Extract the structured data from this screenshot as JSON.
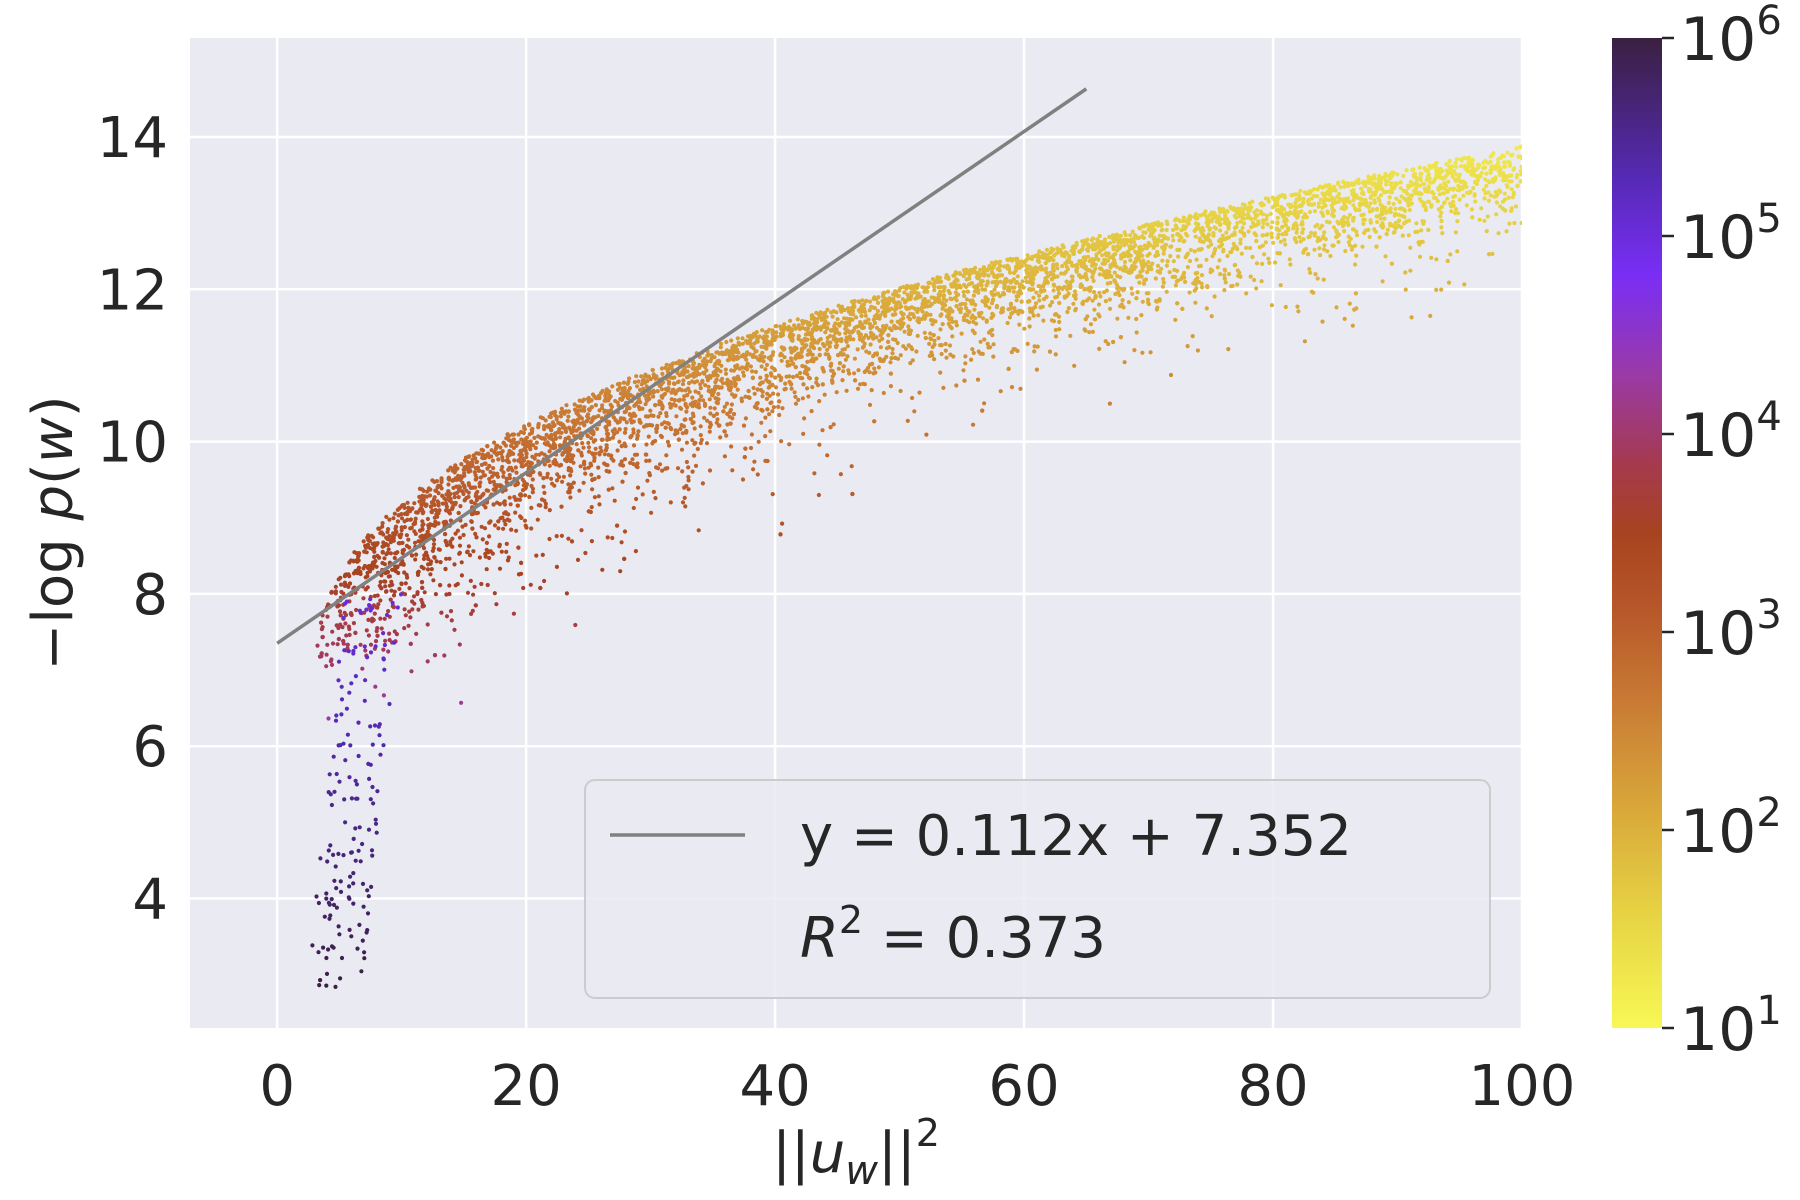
{
  "chart_data": {
    "type": "scatter",
    "title": "",
    "xlabel": "||u_w||^2",
    "ylabel": "−log p(w)",
    "xlim": [
      -7,
      100
    ],
    "ylim": [
      2.3,
      15.3
    ],
    "xticks": [
      0,
      20,
      40,
      60,
      80,
      100
    ],
    "yticks": [
      4,
      6,
      8,
      10,
      12,
      14
    ],
    "grid": true,
    "fit_line": {
      "slope": 0.112,
      "intercept": 7.352,
      "x_range": [
        0,
        65
      ],
      "color": "#808080",
      "label": "y = 0.112x + 7.352"
    },
    "r_squared_label": "R² = 0.373",
    "legend_position": "lower-right",
    "colorbar": {
      "label": "",
      "scale": "log",
      "range": [
        10,
        1000000
      ],
      "ticks": [
        {
          "base": "10",
          "exp": "1"
        },
        {
          "base": "10",
          "exp": "2"
        },
        {
          "base": "10",
          "exp": "3"
        },
        {
          "base": "10",
          "exp": "4"
        },
        {
          "base": "10",
          "exp": "5"
        },
        {
          "base": "10",
          "exp": "6"
        }
      ],
      "colormap": [
        "#f7f855",
        "#e3c23c",
        "#cf8a3a",
        "#b85a28",
        "#a8431a",
        "#a43a52",
        "#9b3aa0",
        "#7a2ef0",
        "#4e2aa8",
        "#3a2040"
      ]
    },
    "colors": {
      "background": "#eaeaf2",
      "grid": "#ffffff",
      "fit": "#808080"
    },
    "series": [
      {
        "points_note_omitted": true
      }
    ]
  }
}
